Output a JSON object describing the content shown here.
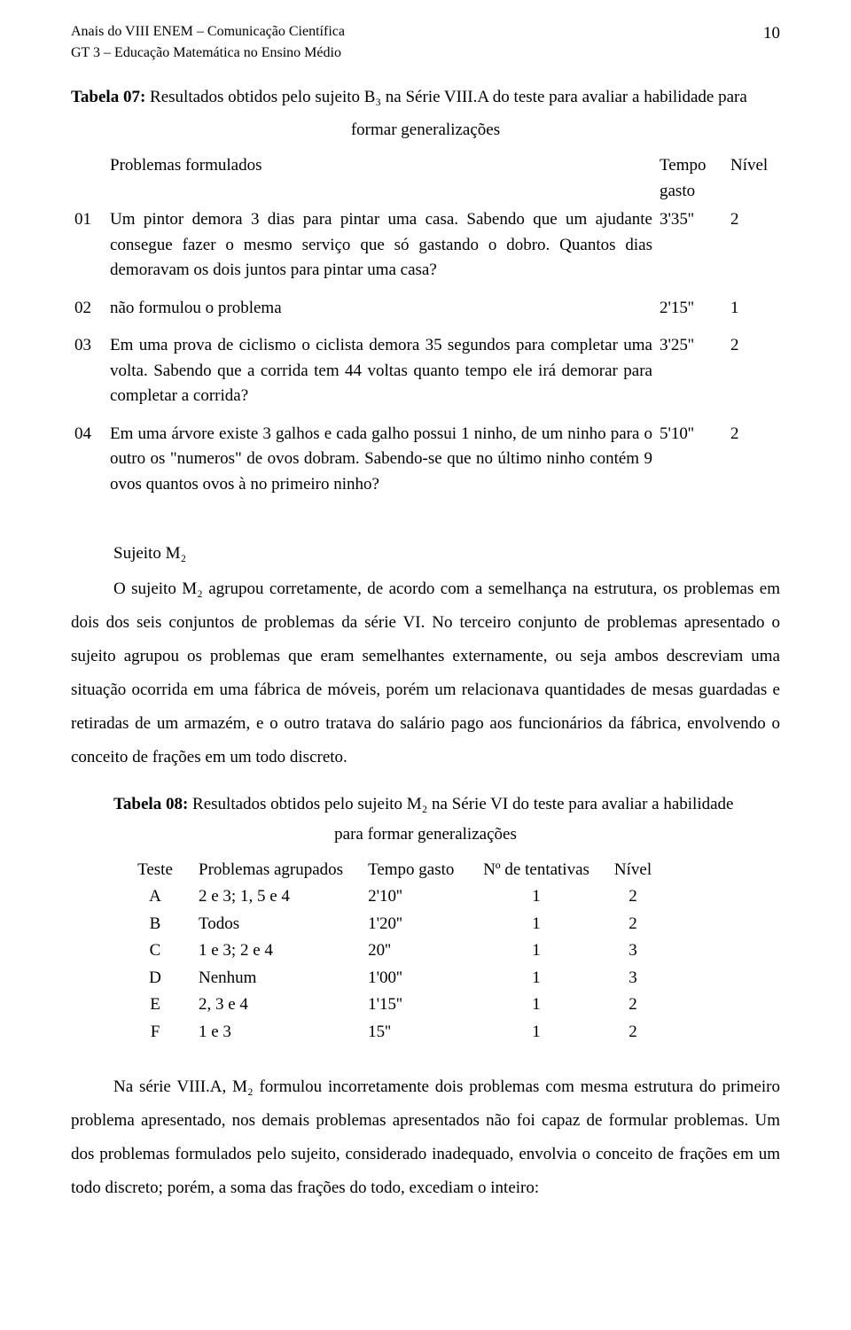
{
  "header": {
    "line1": "Anais do VIII ENEM – Comunicação Científica",
    "line2": "GT 3 – Educação Matemática no Ensino Médio",
    "page_number": "10"
  },
  "tabela07": {
    "title_bold": "Tabela 07:",
    "title_rest": " Resultados obtidos pelo sujeito B₃ na Série VIII.A do teste para avaliar a habilidade para",
    "subtitle": "formar generalizações",
    "col_problemas": "Problemas formulados",
    "col_tempo": "Tempo gasto",
    "col_nivel": "Nível",
    "rows": [
      {
        "num": "01",
        "text": "Um pintor demora 3 dias para pintar uma casa. Sabendo que um ajudante consegue fazer o mesmo serviço que só gastando o dobro. Quantos dias demoravam os dois juntos para pintar uma casa?",
        "tempo": "3'35''",
        "nivel": "2"
      },
      {
        "num": "02",
        "text": "não formulou o problema",
        "tempo": "2'15''",
        "nivel": "1"
      },
      {
        "num": "03",
        "text": "Em uma prova de ciclismo o ciclista demora 35 segundos para completar uma volta. Sabendo que a corrida tem 44 voltas quanto tempo ele irá demorar para completar a corrida?",
        "tempo": "3'25''",
        "nivel": "2"
      },
      {
        "num": "04",
        "text": "Em uma árvore existe 3 galhos e cada galho possui 1 ninho, de um ninho para o outro os \"numeros\" de ovos dobram. Sabendo-se que no último ninho contém 9 ovos quantos ovos à no primeiro ninho?",
        "tempo": "5'10''",
        "nivel": "2"
      }
    ]
  },
  "sujeito_m2": {
    "heading": "Sujeito M₂",
    "para1": "O sujeito M₂ agrupou corretamente, de acordo com a semelhança na estrutura, os problemas em dois dos seis conjuntos de problemas da série VI. No terceiro conjunto de problemas apresentado o sujeito agrupou os problemas que eram semelhantes externamente, ou seja ambos descreviam uma situação ocorrida em uma fábrica de móveis, porém um relacionava quantidades de mesas guardadas e retiradas de um armazém, e o outro tratava do salário pago aos funcionários da fábrica, envolvendo o conceito de frações em um todo discreto."
  },
  "tabela08": {
    "title_bold": "Tabela 08:",
    "title_rest": " Resultados obtidos pelo sujeito M₂ na Série VI do teste para avaliar a habilidade",
    "subtitle": "para formar generalizações",
    "headers": {
      "teste": "Teste",
      "prob": "Problemas agrupados",
      "tempo": "Tempo gasto",
      "tent": "Nº de tentativas",
      "nivel": "Nível"
    },
    "rows": [
      {
        "teste": "A",
        "prob": "2 e 3; 1, 5 e 4",
        "tempo": "2'10''",
        "tent": "1",
        "nivel": "2"
      },
      {
        "teste": "B",
        "prob": "Todos",
        "tempo": "1'20''",
        "tent": "1",
        "nivel": "2"
      },
      {
        "teste": "C",
        "prob": "1 e 3; 2 e 4",
        "tempo": "20''",
        "tent": "1",
        "nivel": "3"
      },
      {
        "teste": "D",
        "prob": "Nenhum",
        "tempo": "1'00''",
        "tent": "1",
        "nivel": "3"
      },
      {
        "teste": "E",
        "prob": "2, 3 e 4",
        "tempo": "1'15''",
        "tent": "1",
        "nivel": "2"
      },
      {
        "teste": "F",
        "prob": "1 e 3",
        "tempo": "15''",
        "tent": "1",
        "nivel": "2"
      }
    ]
  },
  "closing": {
    "para": "Na série VIII.A, M₂ formulou incorretamente dois problemas com mesma estrutura do primeiro problema apresentado, nos demais problemas apresentados não foi capaz de formular problemas. Um dos problemas formulados pelo sujeito, considerado inadequado, envolvia o conceito de frações em um todo discreto; porém, a soma das frações do todo, excediam o inteiro:"
  }
}
